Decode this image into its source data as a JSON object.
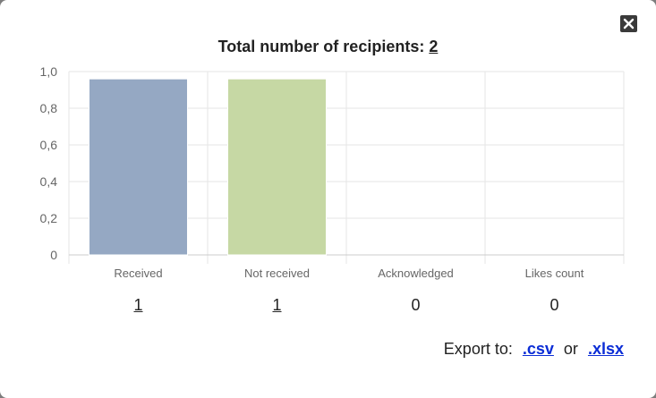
{
  "modal": {
    "title_prefix": "Total number of recipients: ",
    "total_recipients": "2",
    "close_icon": "close-icon"
  },
  "counts": [
    {
      "label": "1",
      "link": true
    },
    {
      "label": "1",
      "link": true
    },
    {
      "label": "0",
      "link": false
    },
    {
      "label": "0",
      "link": false
    }
  ],
  "export": {
    "prefix": "Export to:",
    "csv_label": ".csv",
    "or_label": "or",
    "xlsx_label": ".xlsx"
  },
  "colors": {
    "received": "#95a8c3",
    "not_received": "#c6d8a4",
    "grid": "#e6e6e6",
    "axis_text": "#666666"
  },
  "chart_data": {
    "type": "bar",
    "categories": [
      "Received",
      "Not received",
      "Acknowledged",
      "Likes count"
    ],
    "values": [
      0.96,
      0.96,
      0,
      0
    ],
    "ylim": [
      0,
      1.0
    ],
    "yticks": [
      "0",
      "0,2",
      "0,4",
      "0,6",
      "0,8",
      "1,0"
    ],
    "grid": true,
    "legend": "none"
  }
}
